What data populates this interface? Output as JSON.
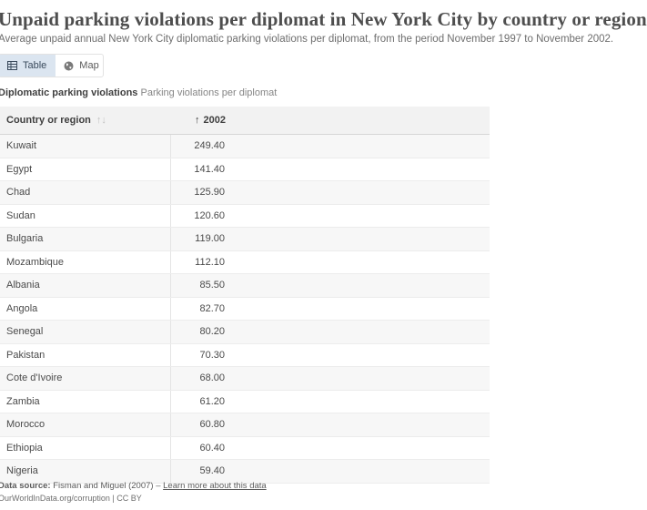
{
  "header": {
    "title": "Unpaid parking violations per diplomat in New York City by country or region",
    "subtitle": "Average unpaid annual New York City diplomatic parking violations per diplomat, from the period November 1997 to November 2002."
  },
  "tabs": [
    {
      "label": "Table",
      "icon": "table-icon",
      "active": true
    },
    {
      "label": "Map",
      "icon": "globe-icon",
      "active": false
    }
  ],
  "table_caption": {
    "name": "Diplomatic parking violations",
    "unit": "Parking violations per diplomat"
  },
  "table": {
    "columns": [
      "Country or region",
      "2002"
    ],
    "sort_icon_label": "↑",
    "rows": [
      {
        "country": "Kuwait",
        "value": "249.40"
      },
      {
        "country": "Egypt",
        "value": "141.40"
      },
      {
        "country": "Chad",
        "value": "125.90"
      },
      {
        "country": "Sudan",
        "value": "120.60"
      },
      {
        "country": "Bulgaria",
        "value": "119.00"
      },
      {
        "country": "Mozambique",
        "value": "112.10"
      },
      {
        "country": "Albania",
        "value": "85.50"
      },
      {
        "country": "Angola",
        "value": "82.70"
      },
      {
        "country": "Senegal",
        "value": "80.20"
      },
      {
        "country": "Pakistan",
        "value": "70.30"
      },
      {
        "country": "Cote d'Ivoire",
        "value": "68.00"
      },
      {
        "country": "Zambia",
        "value": "61.20"
      },
      {
        "country": "Morocco",
        "value": "60.80"
      },
      {
        "country": "Ethiopia",
        "value": "60.40"
      },
      {
        "country": "Nigeria",
        "value": "59.40"
      }
    ]
  },
  "footer": {
    "source_label": "Data source:",
    "source_text": "Fisman and Miguel (2007) –",
    "learn_more": "Learn more about this data",
    "url_license": "OurWorldInData.org/corruption | CC BY"
  },
  "colors": {
    "active_tab_bg": "#dbe5f0",
    "header_bg": "#f2f2f2",
    "stripe_bg": "#f7f7f7"
  }
}
